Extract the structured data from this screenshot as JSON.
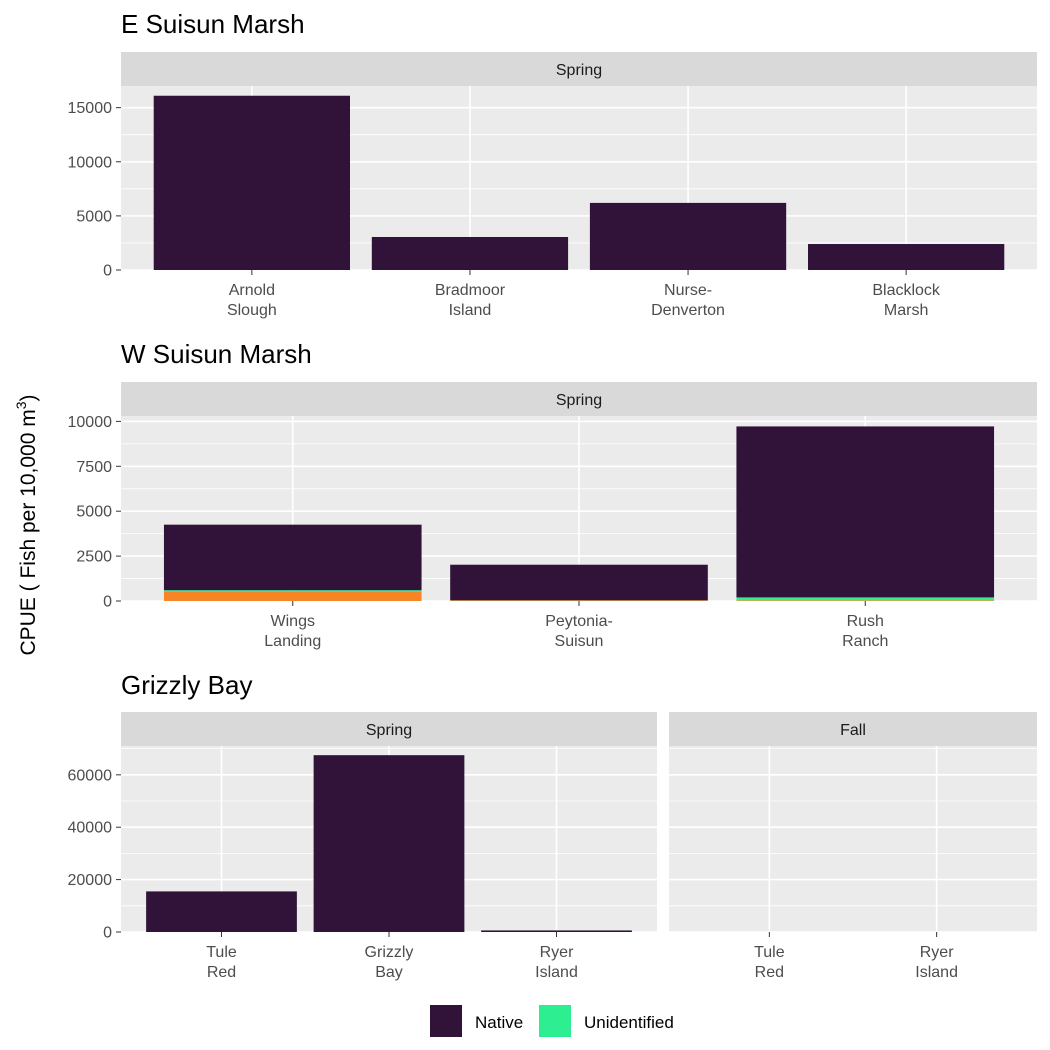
{
  "ylabel_main": "CPUE ( Fish per 10,000 m",
  "ylabel_sup": "3",
  "ylabel_close": ")",
  "colors": {
    "Native": "#311339",
    "Unidentified": "#2eee92",
    "Nonnative": "#f78525"
  },
  "legend": {
    "placement": "bottom",
    "entries": [
      {
        "label": "Native",
        "color": "#311339"
      },
      {
        "label": "Unidentified",
        "color": "#2eee92"
      }
    ]
  },
  "chart_data": [
    {
      "type": "bar",
      "title": "E Suisun Marsh",
      "ylim": [
        0,
        17000
      ],
      "yticks": [
        0,
        5000,
        10000,
        15000
      ],
      "panels": [
        {
          "strip": "Spring",
          "categories": [
            "Arnold\nSlough",
            "Bradmoor\nIsland",
            "Nurse-\nDenverton",
            "Blacklock\nMarsh"
          ],
          "series": [
            {
              "name": "Native",
              "values": [
                16100,
                3050,
                6200,
                2400
              ]
            }
          ]
        }
      ]
    },
    {
      "type": "bar",
      "title": "W Suisun Marsh",
      "ylim": [
        0,
        10300
      ],
      "yticks": [
        0,
        2500,
        5000,
        7500,
        10000
      ],
      "panels": [
        {
          "strip": "Spring",
          "categories": [
            "Wings\nLanding",
            "Peytonia-\nSuisun",
            "Rush\nRanch"
          ],
          "series": [
            {
              "key": "Nonnative",
              "values": [
                500,
                30,
                40
              ]
            },
            {
              "name": "Unidentified",
              "values": [
                100,
                10,
                160
              ]
            },
            {
              "name": "Native",
              "values": [
                3650,
                1980,
                9520
              ]
            }
          ]
        }
      ]
    },
    {
      "type": "bar",
      "title": "Grizzly Bay",
      "ylim": [
        0,
        71000
      ],
      "yticks": [
        0,
        20000,
        40000,
        60000
      ],
      "panels": [
        {
          "strip": "Spring",
          "categories": [
            "Tule\nRed",
            "Grizzly\nBay",
            "Ryer\nIsland"
          ],
          "series": [
            {
              "name": "Native",
              "values": [
                15500,
                67500,
                600
              ]
            }
          ]
        },
        {
          "strip": "Fall",
          "categories": [
            "Tule\nRed",
            "Ryer\nIsland"
          ],
          "series": [
            {
              "name": "Native",
              "values": [
                0,
                0
              ]
            }
          ]
        }
      ]
    }
  ]
}
